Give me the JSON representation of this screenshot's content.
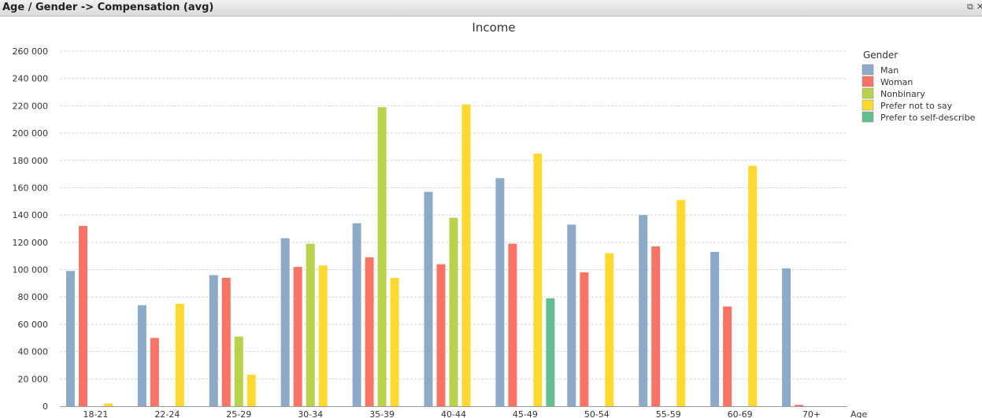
{
  "window": {
    "title": "Age / Gender -> Compensation (avg)",
    "buttons": [
      "restore-icon",
      "close-icon"
    ],
    "restore_glyph": "⧉",
    "close_glyph": "✕"
  },
  "chart_data": {
    "type": "bar",
    "title": "Income",
    "xlabel": "Age",
    "ylabel": "",
    "ylim": [
      0,
      260000
    ],
    "yticks": [
      0,
      20000,
      40000,
      60000,
      80000,
      100000,
      120000,
      140000,
      160000,
      180000,
      200000,
      220000,
      240000,
      260000
    ],
    "ytick_labels": [
      "0",
      "20 000",
      "40 000",
      "60 000",
      "80 000",
      "100 000",
      "120 000",
      "140 000",
      "160 000",
      "180 000",
      "200 000",
      "220 000",
      "240 000",
      "260 000"
    ],
    "grid": true,
    "legend_title": "Gender",
    "legend_position": "right",
    "categories": [
      "18-21",
      "22-24",
      "25-29",
      "30-34",
      "35-39",
      "40-44",
      "45-49",
      "50-54",
      "55-59",
      "60-69",
      "70+"
    ],
    "series": [
      {
        "name": "Man",
        "color": "#8eaac9",
        "values": [
          99000,
          74000,
          96000,
          123000,
          134000,
          157000,
          167000,
          133000,
          140000,
          113000,
          101000
        ]
      },
      {
        "name": "Woman",
        "color": "#fb7364",
        "values": [
          132000,
          50000,
          94000,
          102000,
          109000,
          104000,
          119000,
          98000,
          117000,
          73000,
          1000
        ]
      },
      {
        "name": "Nonbinary",
        "color": "#b9d24c",
        "values": [
          null,
          null,
          51000,
          119000,
          219000,
          138000,
          null,
          null,
          null,
          null,
          null
        ]
      },
      {
        "name": "Prefer not to say",
        "color": "#fdd830",
        "values": [
          2000,
          75000,
          23000,
          103000,
          94000,
          221000,
          185000,
          112000,
          151000,
          176000,
          null
        ]
      },
      {
        "name": "Prefer to self-describe",
        "color": "#63bd8e",
        "values": [
          null,
          null,
          null,
          null,
          null,
          null,
          79000,
          null,
          null,
          null,
          null
        ]
      }
    ]
  }
}
